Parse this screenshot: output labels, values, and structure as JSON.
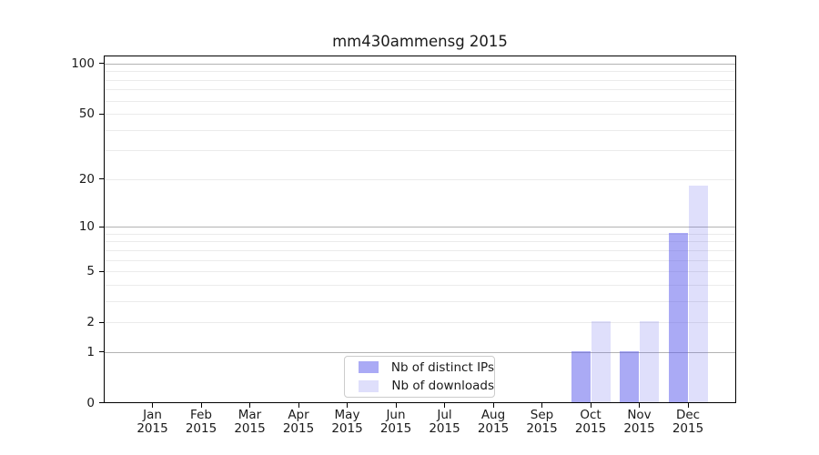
{
  "chart_data": {
    "type": "bar",
    "title": "mm430ammensg 2015",
    "x_axis": {
      "categories": [
        "Jan",
        "Feb",
        "Mar",
        "Apr",
        "May",
        "Jun",
        "Jul",
        "Aug",
        "Sep",
        "Oct",
        "Nov",
        "Dec"
      ],
      "year_label": "2015"
    },
    "y_axis": {
      "scale": "log10(value+1)",
      "ticks": [
        0,
        1,
        2,
        5,
        10,
        20,
        50,
        100
      ],
      "major_gridlines": [
        1,
        10,
        100
      ],
      "minor_gridlines": [
        2,
        3,
        4,
        5,
        6,
        7,
        8,
        9,
        20,
        30,
        40,
        50,
        60,
        70,
        80,
        90
      ],
      "top_value": 110
    },
    "series": [
      {
        "name": "Nb of distinct IPs",
        "color": "rgba(85,85,235,0.5)",
        "solid_hex": "#aaaaf0",
        "values": [
          0,
          0,
          0,
          0,
          0,
          0,
          0,
          0,
          0,
          1,
          1,
          9
        ]
      },
      {
        "name": "Nb of downloads",
        "color": "rgba(85,85,235,0.19)",
        "solid_hex": "#dcdcf8",
        "values": [
          0,
          0,
          0,
          0,
          0,
          0,
          0,
          0,
          0,
          2,
          2,
          18
        ]
      }
    ],
    "legend": {
      "position": "lower-center"
    }
  },
  "colors": {
    "background": "#ffffff",
    "axis": "#000000",
    "text": "#1a1a1a",
    "major_grid": "#b3b3b3",
    "minor_grid": "#ebebeb",
    "legend_border": "#cccccc"
  }
}
